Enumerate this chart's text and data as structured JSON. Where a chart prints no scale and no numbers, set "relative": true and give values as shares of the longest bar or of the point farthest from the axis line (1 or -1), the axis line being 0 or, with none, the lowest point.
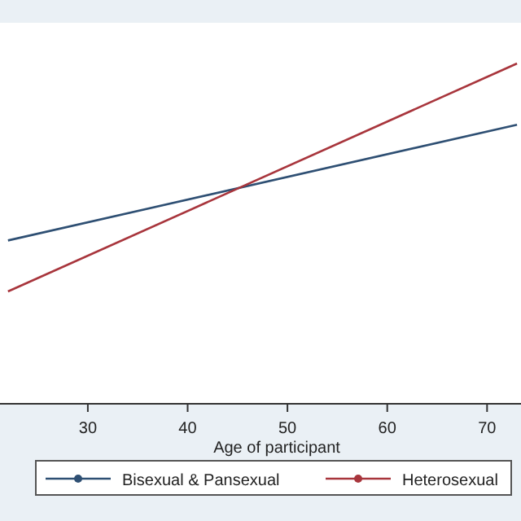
{
  "chart_data": {
    "type": "line",
    "relative": true,
    "xlabel": "Age of participant",
    "xlim": [
      21.2,
      73.4
    ],
    "xticks": [
      30,
      40,
      50,
      60,
      70
    ],
    "legend": "bottom",
    "marker": "none",
    "line_style": "solid",
    "x": [
      22,
      73
    ],
    "series": [
      {
        "name": "Bisexual & Pansexual",
        "color": "#2e4f73",
        "values": [
          0.48,
          0.82
        ]
      },
      {
        "name": "Heterosexual",
        "color": "#a8353c",
        "values": [
          0.33,
          1
        ]
      }
    ]
  }
}
